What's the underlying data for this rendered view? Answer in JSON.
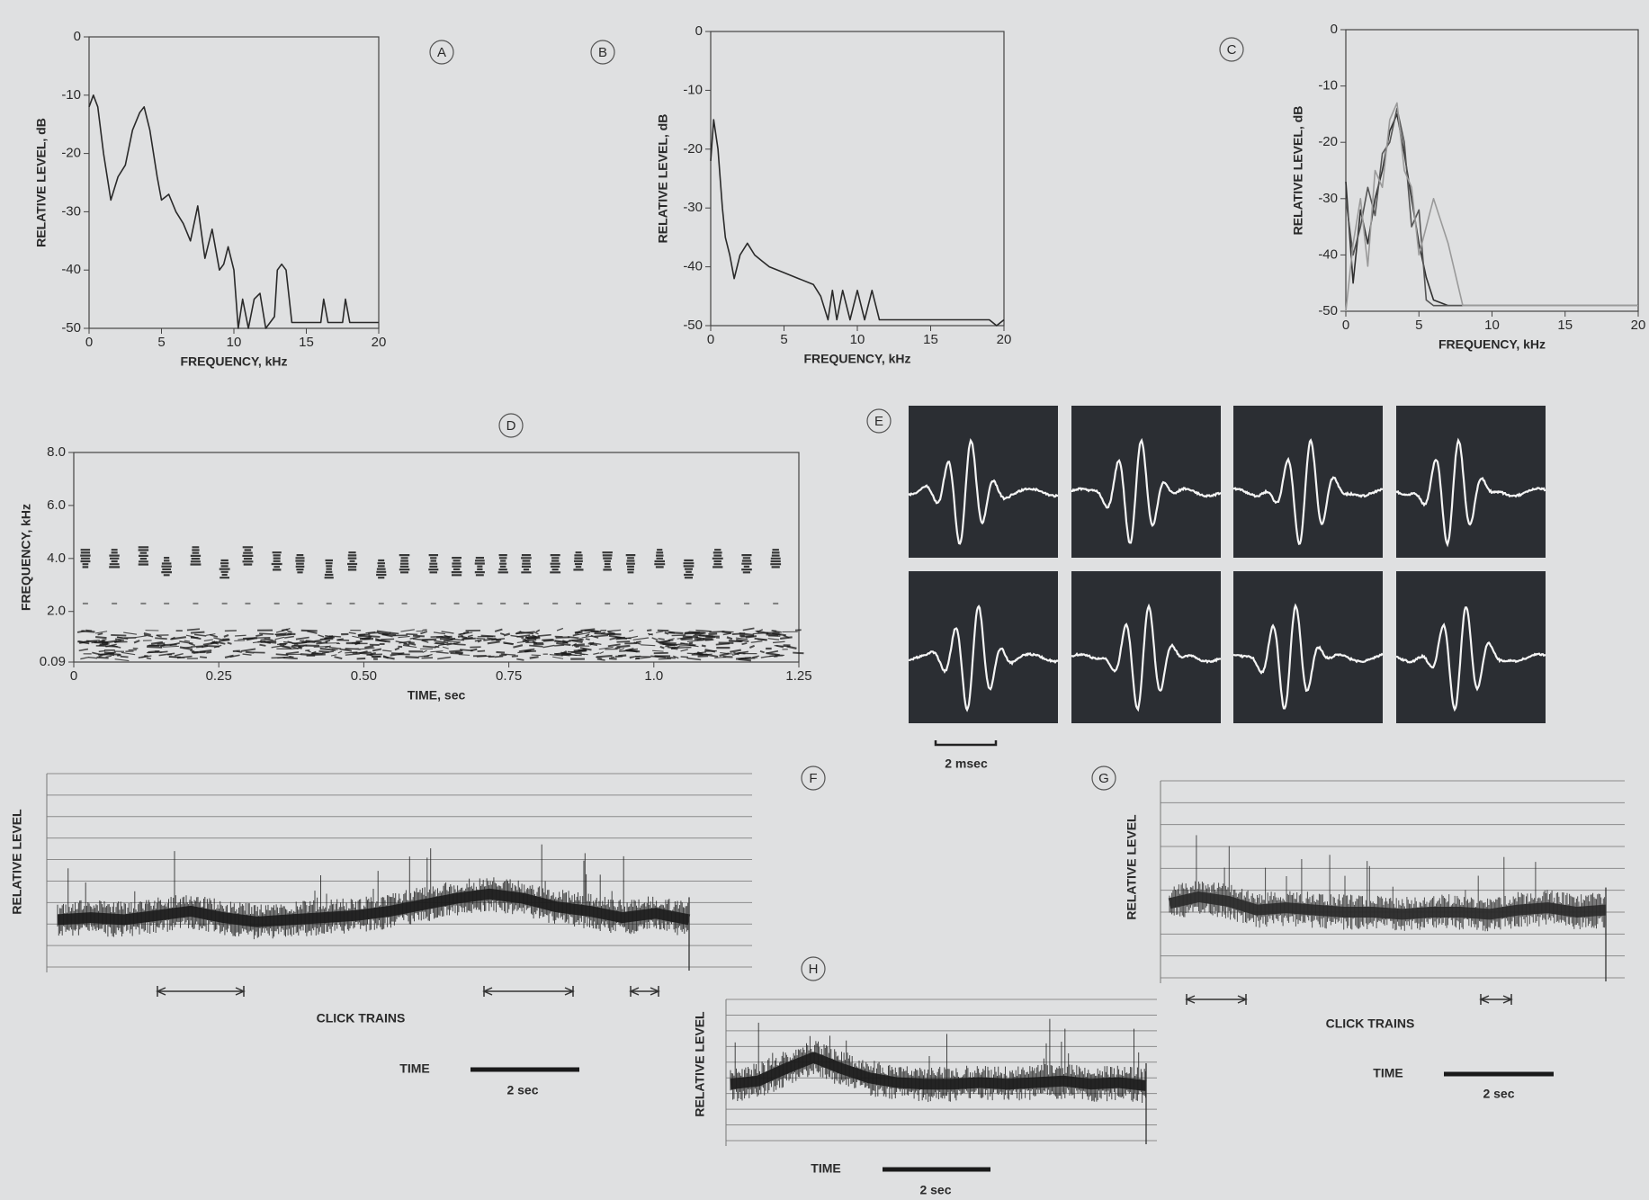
{
  "chart_data": [
    {
      "type": "line",
      "panel_label": "A",
      "xlabel": "FREQUENCY, kHz",
      "ylabel": "RELATIVE LEVEL, dB",
      "xlim": [
        0,
        20
      ],
      "ylim": [
        -50,
        0
      ],
      "xticks": [
        0,
        5,
        10,
        15,
        20
      ],
      "yticks": [
        0,
        -10,
        -20,
        -30,
        -40,
        -50
      ],
      "color": "#2a2a2a",
      "x": [
        0,
        0.3,
        0.6,
        1,
        1.5,
        2,
        2.5,
        3,
        3.5,
        3.8,
        4.2,
        4.7,
        5,
        5.5,
        6,
        6.5,
        7,
        7.5,
        8,
        8.5,
        9,
        9.3,
        9.6,
        10,
        10.3,
        10.6,
        11,
        11.4,
        11.8,
        12.2,
        12.8,
        13,
        13.3,
        13.6,
        14,
        15,
        16,
        16.2,
        16.5,
        17,
        17.5,
        17.7,
        18,
        19,
        20
      ],
      "values": [
        -12,
        -10,
        -12,
        -20,
        -28,
        -24,
        -22,
        -16,
        -13,
        -12,
        -16,
        -24,
        -28,
        -27,
        -30,
        -32,
        -35,
        -29,
        -38,
        -33,
        -40,
        -39,
        -36,
        -40,
        -50,
        -45,
        -50,
        -45,
        -44,
        -50,
        -48,
        -40,
        -39,
        -40,
        -49,
        -49,
        -49,
        -45,
        -49,
        -49,
        -49,
        -45,
        -49,
        -49,
        -49
      ]
    },
    {
      "type": "line",
      "panel_label": "B",
      "xlabel": "FREQUENCY, kHz",
      "ylabel": "RELATIVE LEVEL, dB",
      "xlim": [
        0,
        20
      ],
      "ylim": [
        -50,
        0
      ],
      "xticks": [
        0,
        5,
        10,
        15,
        20
      ],
      "yticks": [
        0,
        -10,
        -20,
        -30,
        -40,
        -50
      ],
      "color": "#2a2a2a",
      "x": [
        0,
        0.2,
        0.5,
        0.8,
        1,
        1.3,
        1.6,
        2,
        2.5,
        3,
        3.5,
        4,
        5,
        6,
        7,
        7.5,
        8,
        8.3,
        8.6,
        9,
        9.5,
        10,
        10.5,
        11,
        11.5,
        12,
        15,
        19,
        19.5,
        20
      ],
      "values": [
        -22,
        -15,
        -20,
        -30,
        -35,
        -38,
        -42,
        -38,
        -36,
        -38,
        -39,
        -40,
        -41,
        -42,
        -43,
        -45,
        -49,
        -44,
        -49,
        -44,
        -49,
        -44,
        -49,
        -44,
        -49,
        -49,
        -49,
        -49,
        -50,
        -49
      ]
    },
    {
      "type": "line",
      "panel_label": "C",
      "xlabel": "FREQUENCY, kHz",
      "ylabel": "RELATIVE LEVEL, dB",
      "xlim": [
        0,
        20
      ],
      "ylim": [
        -50,
        0
      ],
      "xticks": [
        0,
        5,
        10,
        15,
        20
      ],
      "yticks": [
        0,
        -10,
        -20,
        -30,
        -40,
        -50
      ],
      "x": [
        0,
        0.5,
        1,
        1.5,
        2,
        2.5,
        3,
        3.5,
        4,
        4.5,
        5,
        5.5,
        6,
        7,
        8,
        10,
        20
      ],
      "series": [
        {
          "color": "#2f2f2f",
          "values": [
            -27,
            -45,
            -32,
            -38,
            -30,
            -25,
            -18,
            -15,
            -22,
            -30,
            -38,
            -44,
            -48,
            -49,
            -49,
            -49,
            -49
          ]
        },
        {
          "color": "#555555",
          "values": [
            -30,
            -40,
            -35,
            -28,
            -33,
            -22,
            -20,
            -14,
            -20,
            -35,
            -32,
            -48,
            -49,
            -49,
            -49,
            -49,
            -49
          ]
        },
        {
          "color": "#9a9a9a",
          "values": [
            -50,
            -38,
            -30,
            -42,
            -25,
            -28,
            -16,
            -13,
            -25,
            -28,
            -40,
            -35,
            -30,
            -38,
            -49,
            -49,
            -49
          ]
        }
      ]
    },
    {
      "type": "spectrogram",
      "panel_label": "D",
      "xlabel": "TIME, sec",
      "ylabel": "FREQUENCY, kHz",
      "xlim": [
        0,
        1.25
      ],
      "ylim": [
        0.09,
        8
      ],
      "xticks": [
        0,
        0.25,
        {
          "value": 0.5,
          "label": "0.50"
        },
        0.75,
        {
          "value": 1,
          "label": "1.0"
        },
        1.25
      ],
      "yticks": [
        0.09,
        {
          "value": 2,
          "label": "2.0"
        },
        {
          "value": 4,
          "label": "4.0"
        },
        {
          "value": 6,
          "label": "6.0"
        },
        {
          "value": 8,
          "label": "8.0"
        }
      ],
      "color": "#1a1a1a",
      "x": [
        0.02,
        0.07,
        0.12,
        0.16,
        0.21,
        0.26,
        0.3,
        0.35,
        0.39,
        0.44,
        0.48,
        0.53,
        0.57,
        0.62,
        0.66,
        0.7,
        0.74,
        0.78,
        0.83,
        0.87,
        0.92,
        0.96,
        1.01,
        1.06,
        1.11,
        1.16,
        1.21
      ],
      "values": [
        4.0,
        4.0,
        4.1,
        3.7,
        4.1,
        3.6,
        4.1,
        3.9,
        3.8,
        3.6,
        3.9,
        3.6,
        3.8,
        3.8,
        3.7,
        3.7,
        3.8,
        3.8,
        3.8,
        3.9,
        3.9,
        3.8,
        4.0,
        3.6,
        4.0,
        3.8,
        4.0
      ]
    },
    {
      "type": "oscillogram",
      "panel_label": "E",
      "scale_bar_label": "2 msec",
      "color": "#2b2e33"
    },
    {
      "type": "level_trace",
      "panel_label": "F",
      "ylabel": "RELATIVE LEVEL",
      "annotation": "CLICK TRAINS",
      "time_label": "TIME",
      "scale_bar_label": "2 sec",
      "grid_lines": 9,
      "color": "#1c1c1c",
      "values": [
        2.2,
        2.3,
        2.2,
        2.4,
        2.6,
        2.3,
        2.1,
        2.2,
        2.3,
        2.4,
        2.6,
        2.9,
        3.2,
        3.4,
        3.2,
        2.8,
        2.6,
        2.3,
        2.5,
        2.2
      ]
    },
    {
      "type": "level_trace",
      "panel_label": "G",
      "ylabel": "RELATIVE LEVEL",
      "annotation": "CLICK TRAINS",
      "time_label": "TIME",
      "scale_bar_label": "2 sec",
      "grid_lines": 9,
      "color": "#2a2a2a",
      "values": [
        3.4,
        3.7,
        3.5,
        3.1,
        3.2,
        3.1,
        3.0,
        3.0,
        2.9,
        3.0,
        3.0,
        2.9,
        3.1,
        3.2,
        3.0,
        3.1
      ]
    },
    {
      "type": "level_trace",
      "panel_label": "H",
      "ylabel": "RELATIVE LEVEL",
      "time_label": "TIME",
      "scale_bar_label": "2 sec",
      "grid_lines": 9,
      "color": "#1c1c1c",
      "values": [
        3.6,
        3.8,
        4.6,
        5.3,
        4.6,
        4.0,
        3.7,
        3.6,
        3.6,
        3.7,
        3.6,
        3.7,
        3.8,
        3.6,
        3.7,
        3.5
      ]
    }
  ]
}
